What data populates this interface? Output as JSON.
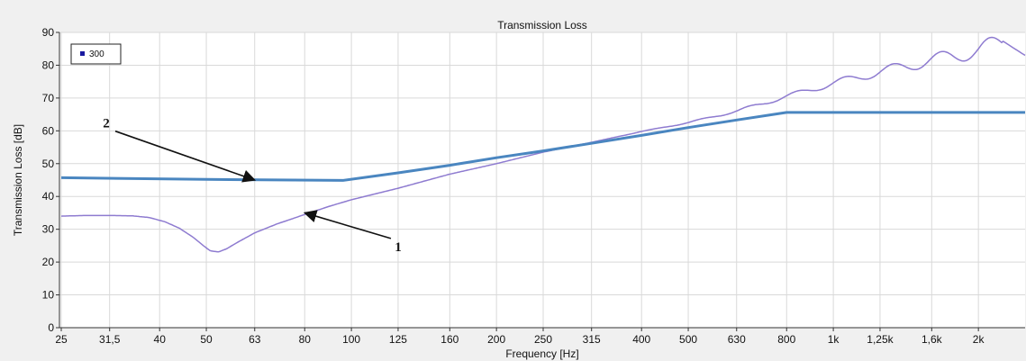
{
  "chart_data": {
    "type": "line",
    "title": "Transmission Loss",
    "xlabel": "Frequency [Hz]",
    "ylabel": "Transmission Loss [dB]",
    "ylim": [
      0,
      90
    ],
    "yticks": [
      0,
      10,
      20,
      30,
      40,
      50,
      60,
      70,
      80,
      90
    ],
    "x_scale": "log (one-third octave bands)",
    "x_tick_labels": [
      "25",
      "31,5",
      "40",
      "50",
      "63",
      "80",
      "100",
      "125",
      "160",
      "200",
      "250",
      "315",
      "400",
      "500",
      "630",
      "800",
      "1k",
      "1,25k",
      "1,6k",
      "2k"
    ],
    "xlim": [
      25,
      2500
    ],
    "grid": true,
    "legend": {
      "position": "top-left",
      "entries": [
        {
          "label": "300",
          "color": "#1a1aa0"
        }
      ]
    },
    "series": [
      {
        "name": "300",
        "color": "#8e7bd0",
        "points": [
          [
            25,
            34
          ],
          [
            28,
            34.2
          ],
          [
            31.5,
            34.2
          ],
          [
            35,
            34.1
          ],
          [
            38,
            33.6
          ],
          [
            41,
            32.3
          ],
          [
            44,
            30.3
          ],
          [
            47,
            27.5
          ],
          [
            49.5,
            24.8
          ],
          [
            51,
            23.4
          ],
          [
            53,
            23.1
          ],
          [
            55,
            24
          ],
          [
            58,
            26
          ],
          [
            63,
            28.9
          ],
          [
            70,
            31.6
          ],
          [
            80,
            34.5
          ],
          [
            90,
            37
          ],
          [
            100,
            39
          ],
          [
            125,
            42.5
          ],
          [
            160,
            46.8
          ],
          [
            200,
            50
          ],
          [
            250,
            53.5
          ],
          [
            315,
            56.5
          ],
          [
            400,
            59.8
          ],
          [
            500,
            62.5
          ],
          [
            630,
            66
          ],
          [
            800,
            70.5
          ],
          [
            1000,
            74.5
          ],
          [
            1250,
            78
          ],
          [
            1600,
            81.5
          ],
          [
            2000,
            84.5
          ],
          [
            2250,
            87.3
          ],
          [
            2500,
            83
          ]
        ],
        "ripple": {
          "start_hz": 300,
          "end_hz": 2500,
          "period_bands": 1
        }
      },
      {
        "name": "",
        "color": "#4a86c0",
        "points": [
          [
            25,
            45.7
          ],
          [
            50,
            45.2
          ],
          [
            96,
            44.9
          ],
          [
            125,
            47.2
          ],
          [
            160,
            49.5
          ],
          [
            200,
            51.8
          ],
          [
            250,
            53.9
          ],
          [
            315,
            56.2
          ],
          [
            400,
            58.6
          ],
          [
            500,
            61
          ],
          [
            630,
            63.3
          ],
          [
            800,
            65.6
          ],
          [
            1000,
            65.6
          ],
          [
            1600,
            65.6
          ],
          [
            2500,
            65.6
          ]
        ]
      }
    ],
    "annotations": [
      {
        "label": "1",
        "target": [
          80,
          35
        ],
        "label_at": [
          125,
          25
        ]
      },
      {
        "label": "2",
        "target": [
          63,
          45
        ],
        "label_at": [
          31,
          61
        ]
      }
    ]
  }
}
